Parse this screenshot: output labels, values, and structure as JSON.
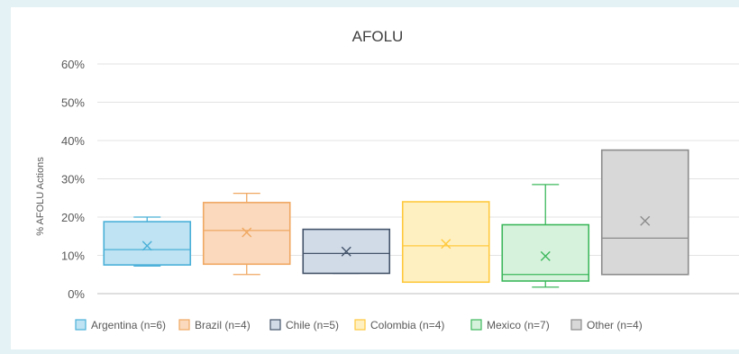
{
  "chart_data": {
    "type": "boxplot",
    "title": "AFOLU",
    "ylabel": "% AFOLU Actions",
    "xlabel": "",
    "ylim": [
      0,
      60
    ],
    "ytick_labels": [
      "0%",
      "10%",
      "20%",
      "30%",
      "40%",
      "50%",
      "60%"
    ],
    "grid": true,
    "legend_position": "bottom",
    "series": [
      {
        "name": "Argentina (n=6)",
        "color": "#bfe3f2",
        "stroke": "#4ab0d8",
        "whisker_low": 7.2,
        "q1": 7.5,
        "median": 11.5,
        "q3": 18.8,
        "whisker_high": 20.0,
        "mean": 12.5
      },
      {
        "name": "Brazil (n=4)",
        "color": "#fad9bd",
        "stroke": "#f0a862",
        "whisker_low": 5.0,
        "q1": 7.7,
        "median": 16.5,
        "q3": 23.8,
        "whisker_high": 26.2,
        "mean": 16.0
      },
      {
        "name": "Chile (n=5)",
        "color": "#d1dbe8",
        "stroke": "#44546a",
        "whisker_low": 5.3,
        "q1": 5.3,
        "median": 10.5,
        "q3": 16.8,
        "whisker_high": 16.8,
        "mean": 11.0
      },
      {
        "name": "Colombia (n=4)",
        "color": "#fff0c2",
        "stroke": "#ffc93c",
        "whisker_low": 3.0,
        "q1": 3.0,
        "median": 12.5,
        "q3": 24.0,
        "whisker_high": 24.0,
        "mean": 13.0
      },
      {
        "name": "Mexico (n=7)",
        "color": "#d7f2dc",
        "stroke": "#3db85c",
        "whisker_low": 1.7,
        "q1": 3.3,
        "median": 5.0,
        "q3": 18.0,
        "whisker_high": 28.5,
        "mean": 9.8
      },
      {
        "name": "Other (n=4)",
        "color": "#d8d8d8",
        "stroke": "#8c8c8c",
        "whisker_low": 5.0,
        "q1": 5.0,
        "median": 14.5,
        "q3": 37.5,
        "whisker_high": 37.5,
        "mean": 19.0
      }
    ]
  }
}
